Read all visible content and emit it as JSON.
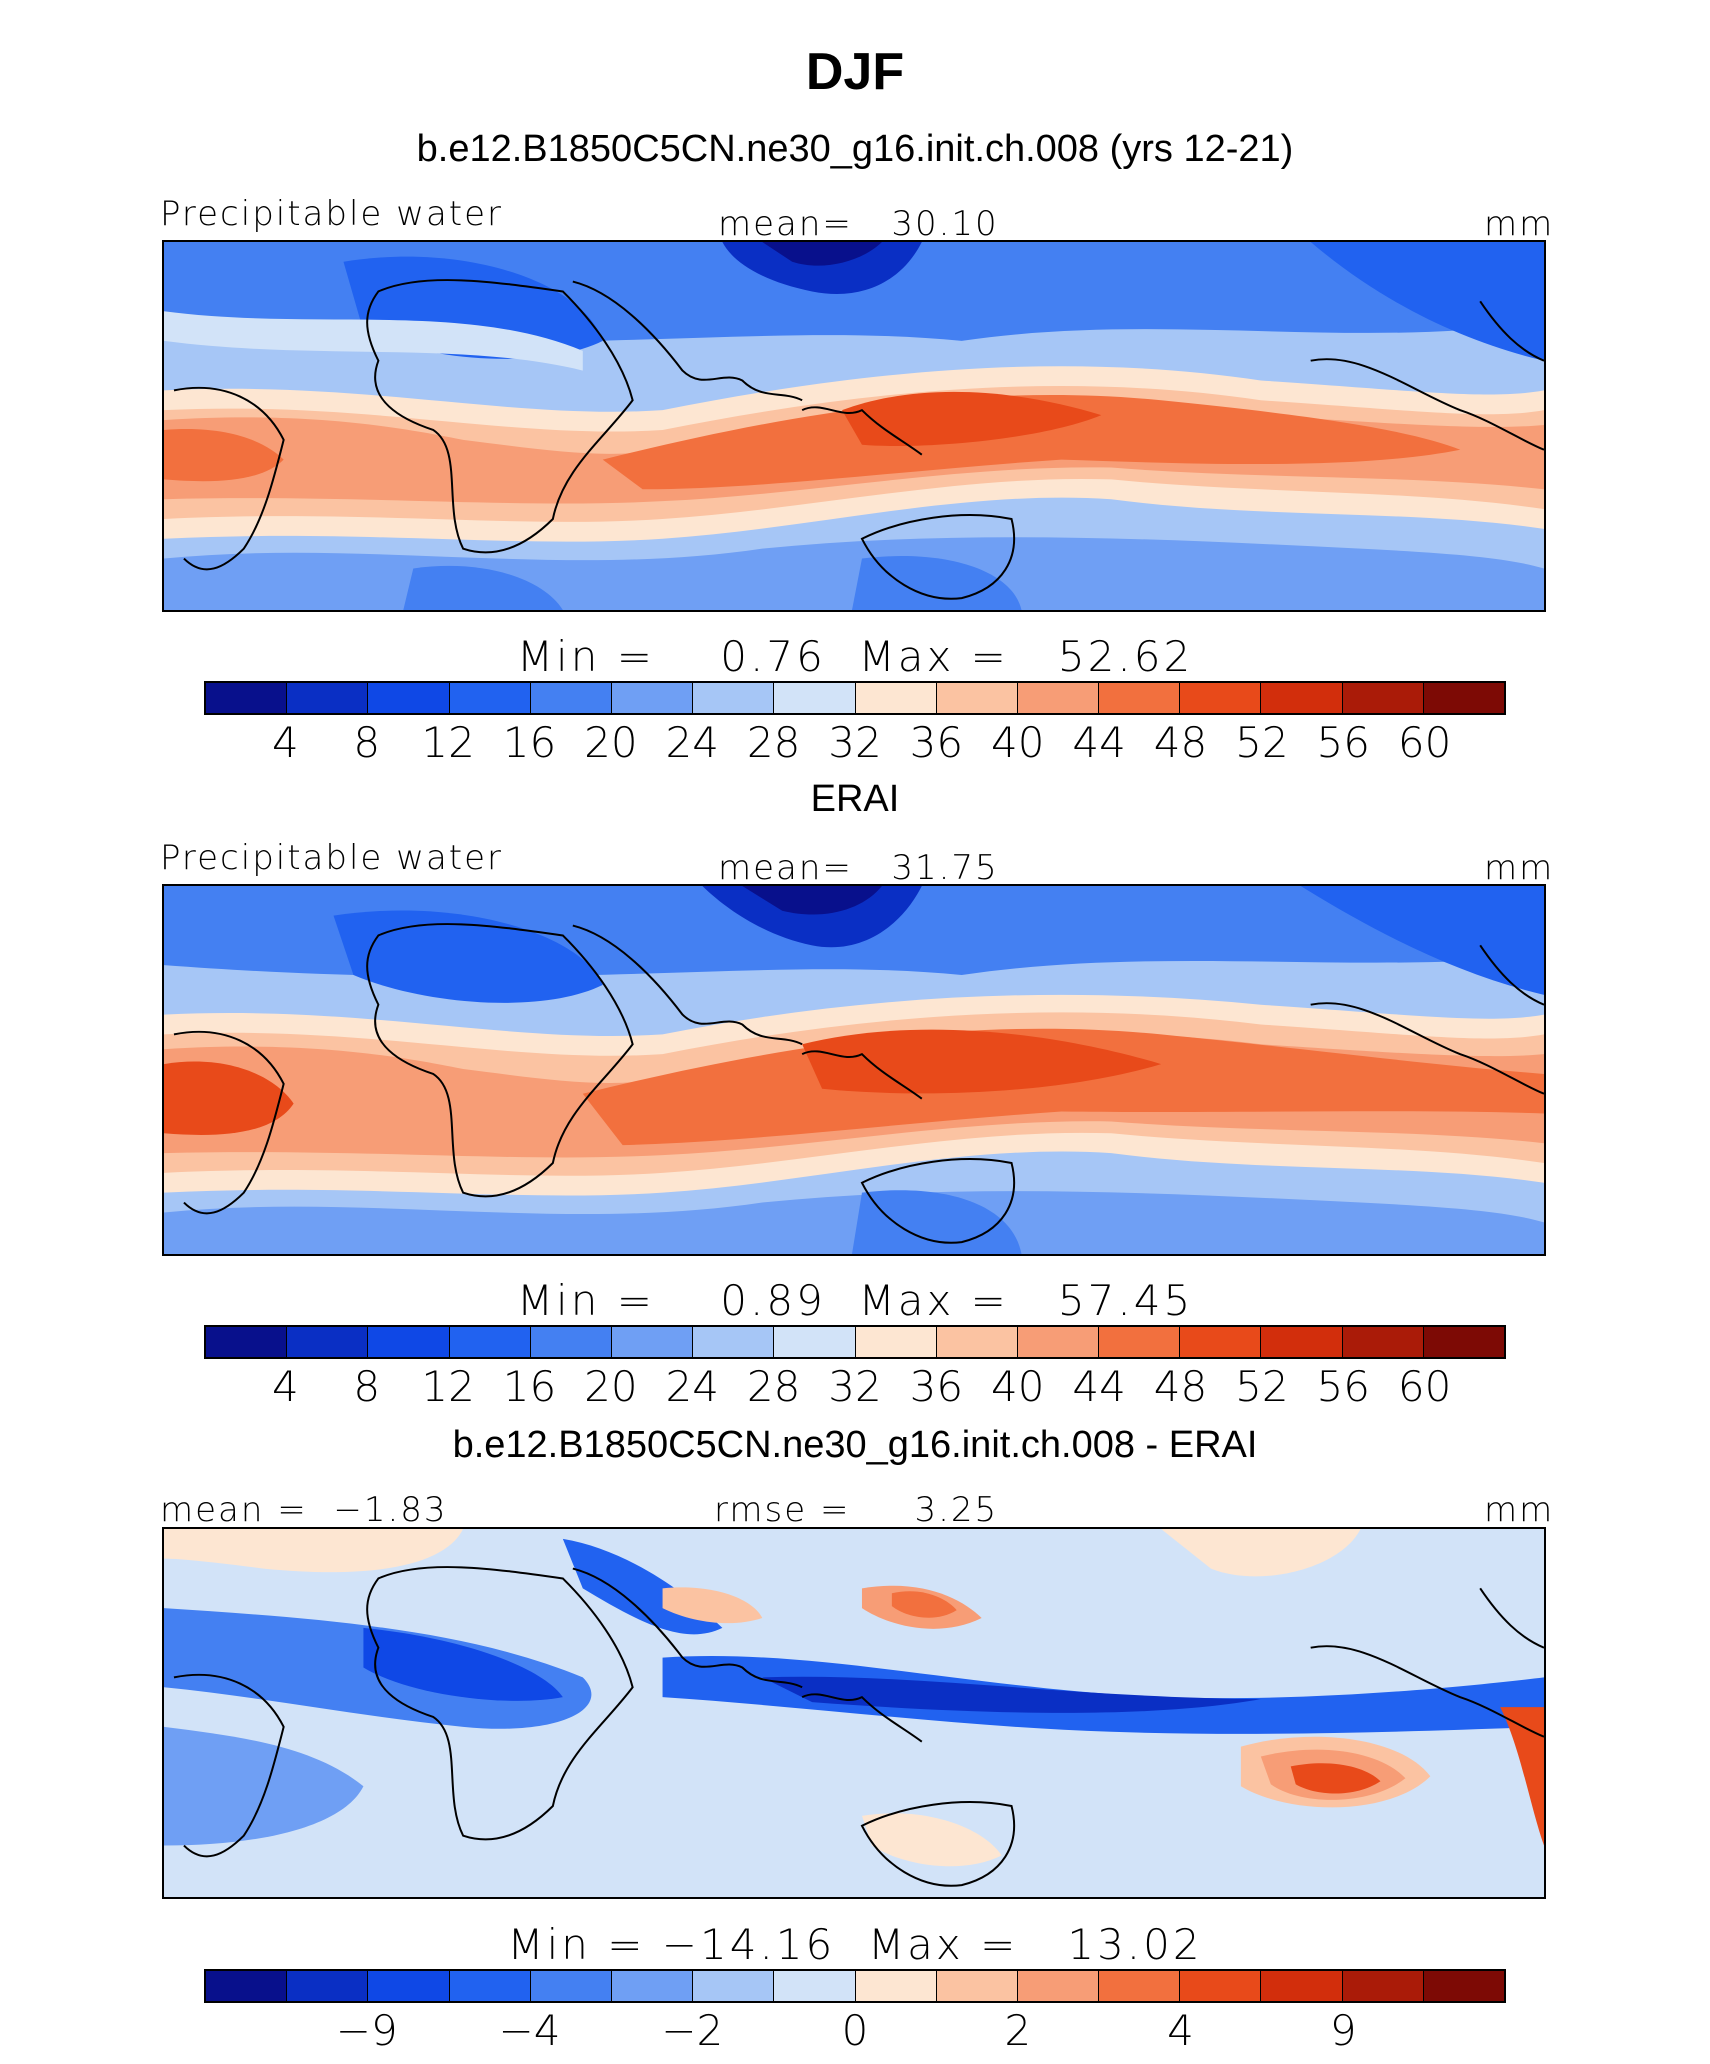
{
  "title": "DJF",
  "colors": [
    "#08108c",
    "#0a2fc4",
    "#0f48e6",
    "#2162f0",
    "#4480f2",
    "#6f9ff4",
    "#a6c6f6",
    "#d2e3f8",
    "#fde6d2",
    "#fbc3a2",
    "#f79d76",
    "#f2703e",
    "#e84a1a",
    "#d22e0c",
    "#aa1b08",
    "#7d0a05"
  ],
  "panels": [
    {
      "title": "b.e12.B1850C5CN.ne30_g16.init.ch.008 (yrs 12-21)",
      "left_label": "Precipitable water",
      "center_label": "mean=   30.10",
      "right_label": "mm",
      "minmax": "Min =    0.76  Max =   52.62",
      "ticks": [
        "4",
        "8",
        "12",
        "16",
        "20",
        "24",
        "28",
        "32",
        "36",
        "40",
        "44",
        "48",
        "52",
        "56",
        "60"
      ]
    },
    {
      "title": "ERAI",
      "left_label": "Precipitable water",
      "center_label": "mean=   31.75",
      "right_label": "mm",
      "minmax": "Min =    0.89  Max =   57.45",
      "ticks": [
        "4",
        "8",
        "12",
        "16",
        "20",
        "24",
        "28",
        "32",
        "36",
        "40",
        "44",
        "48",
        "52",
        "56",
        "60"
      ]
    },
    {
      "title": "b.e12.B1850C5CN.ne30_g16.init.ch.008 - ERAI",
      "left_label": "mean =  −1.83",
      "center_label": "rmse =     3.25",
      "right_label": "mm",
      "minmax": "Min = −14.16  Max =   13.02",
      "ticks": [
        "−9",
        "−4",
        "−2",
        "0",
        "2",
        "4",
        "9"
      ]
    }
  ]
}
